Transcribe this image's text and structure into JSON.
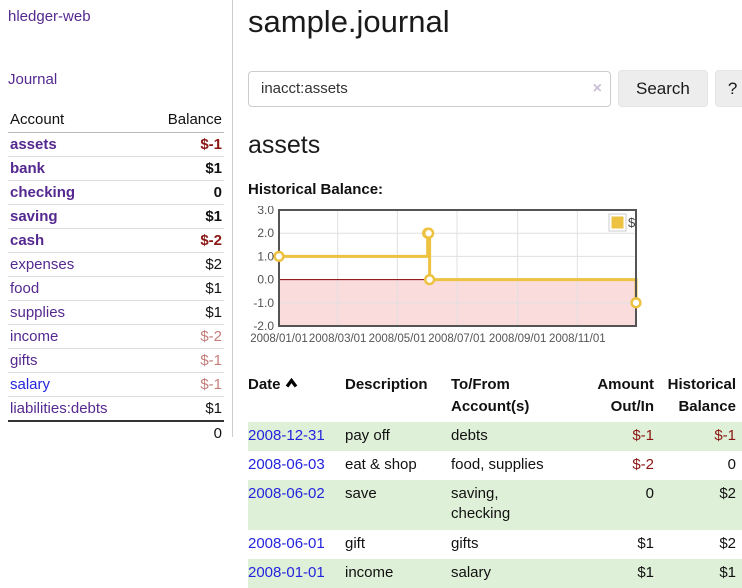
{
  "colors": {
    "link_purple": "#55298f",
    "link_blue": "#2424dd",
    "negative_strong": "#8b1713",
    "negative_muted": "#c47e7a",
    "row_green": "#dff0d8",
    "series_yellow": "#edc240",
    "negative_region_fill": "#fbdcdd",
    "zero_line": "#8b0000",
    "grid": "#e0e0e0",
    "chart_border": "#545454"
  },
  "sidebar": {
    "app_title": "hledger-web",
    "nav": [
      {
        "label": "Journal"
      }
    ],
    "accounts_table": {
      "headers": {
        "account": "Account",
        "balance": "Balance"
      },
      "rows": [
        {
          "name": "assets",
          "depth": 0,
          "bold": true,
          "balance": "$-1",
          "balance_style": "negative_strong",
          "link": "purple"
        },
        {
          "name": "bank",
          "depth": 1,
          "bold": true,
          "balance": "$1",
          "balance_style": "normal",
          "link": "purple"
        },
        {
          "name": "checking",
          "depth": 2,
          "bold": true,
          "balance": "0",
          "balance_style": "normal",
          "link": "purple"
        },
        {
          "name": "saving",
          "depth": 2,
          "bold": true,
          "balance": "$1",
          "balance_style": "normal",
          "link": "purple"
        },
        {
          "name": "cash",
          "depth": 1,
          "bold": true,
          "balance": "$-2",
          "balance_style": "negative_strong",
          "link": "purple"
        },
        {
          "name": "expenses",
          "depth": 0,
          "bold": false,
          "balance": "$2",
          "balance_style": "normal",
          "link": "purple"
        },
        {
          "name": "food",
          "depth": 1,
          "bold": false,
          "balance": "$1",
          "balance_style": "normal",
          "link": "purple"
        },
        {
          "name": "supplies",
          "depth": 1,
          "bold": false,
          "balance": "$1",
          "balance_style": "normal",
          "link": "purple"
        },
        {
          "name": "income",
          "depth": 0,
          "bold": false,
          "balance": "$-2",
          "balance_style": "negative_muted",
          "link": "purple"
        },
        {
          "name": "gifts",
          "depth": 1,
          "bold": false,
          "balance": "$-1",
          "balance_style": "negative_muted",
          "link": "purple"
        },
        {
          "name": "salary",
          "depth": 1,
          "bold": false,
          "balance": "$-1",
          "balance_style": "negative_muted",
          "link": "blue"
        },
        {
          "name": "liabilities:debts",
          "depth": 0,
          "bold": false,
          "balance": "$1",
          "balance_style": "normal",
          "link": "purple"
        }
      ],
      "total": "0"
    }
  },
  "main": {
    "title": "sample.journal",
    "search": {
      "value": "inacct:assets",
      "clear_icon": "×",
      "button_label": "Search",
      "help_label": "?"
    },
    "account_heading": "assets",
    "chart_title": "Historical Balance:",
    "register": {
      "headers": {
        "date": "Date",
        "description": "Description",
        "tofrom_line1": "To/From",
        "tofrom_line2": "Account(s)",
        "amount_line1": "Amount",
        "amount_line2": "Out/In",
        "balance_line1": "Historical",
        "balance_line2": "Balance"
      },
      "rows": [
        {
          "date": "2008-12-31",
          "description": "pay off",
          "accounts": [
            "debts"
          ],
          "amount": "$-1",
          "amount_neg": true,
          "balance": "$-1",
          "balance_neg": true,
          "green": true
        },
        {
          "date": "2008-06-03",
          "description": "eat & shop",
          "accounts": [
            "food, supplies"
          ],
          "amount": "$-2",
          "amount_neg": true,
          "balance": "0",
          "balance_neg": false,
          "green": false
        },
        {
          "date": "2008-06-02",
          "description": "save",
          "accounts": [
            "saving,",
            "checking"
          ],
          "amount": "0",
          "amount_neg": false,
          "balance": "$2",
          "balance_neg": false,
          "green": true
        },
        {
          "date": "2008-06-01",
          "description": "gift",
          "accounts": [
            "gifts"
          ],
          "amount": "$1",
          "amount_neg": false,
          "balance": "$2",
          "balance_neg": false,
          "green": false
        },
        {
          "date": "2008-01-01",
          "description": "income",
          "accounts": [
            "salary"
          ],
          "amount": "$1",
          "amount_neg": false,
          "balance": "$1",
          "balance_neg": false,
          "green": true
        }
      ]
    }
  },
  "chart_data": {
    "type": "line",
    "step": true,
    "title": "Historical Balance",
    "legend": [
      {
        "label": "$",
        "color": "#edc240"
      }
    ],
    "legend_position": "top-right",
    "grid": true,
    "xlim_days": [
      0,
      365
    ],
    "ylim": [
      -2,
      3
    ],
    "series": [
      {
        "name": "$",
        "points": [
          {
            "date": "2008-01-01",
            "day": 0,
            "value": 1
          },
          {
            "date": "2008-06-01",
            "day": 152,
            "value": 2
          },
          {
            "date": "2008-06-02",
            "day": 153,
            "value": 2
          },
          {
            "date": "2008-06-03",
            "day": 154,
            "value": 0
          },
          {
            "date": "2008-12-31",
            "day": 365,
            "value": -1
          }
        ]
      }
    ],
    "x_ticks": [
      {
        "day": 0,
        "label": "2008/01/01"
      },
      {
        "day": 60,
        "label": "2008/03/01"
      },
      {
        "day": 121,
        "label": "2008/05/01"
      },
      {
        "day": 182,
        "label": "2008/07/01"
      },
      {
        "day": 244,
        "label": "2008/09/01"
      },
      {
        "day": 305,
        "label": "2008/11/01"
      }
    ],
    "y_ticks": [
      {
        "value": 3,
        "label": "3.0"
      },
      {
        "value": 2,
        "label": "2.0"
      },
      {
        "value": 1,
        "label": "1.0"
      },
      {
        "value": 0,
        "label": "0.0"
      },
      {
        "value": -1,
        "label": "-1.0"
      },
      {
        "value": -2,
        "label": "-2.0"
      }
    ],
    "negative_region": {
      "from": 0,
      "to": -2
    }
  }
}
